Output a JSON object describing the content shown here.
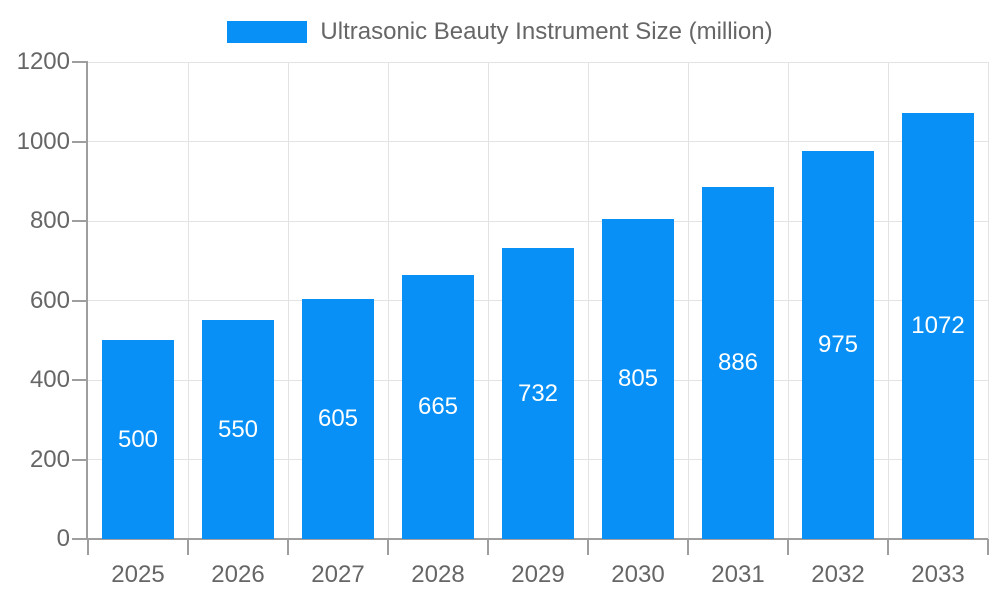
{
  "chart_data": {
    "type": "bar",
    "title": "Ultrasonic Beauty Instrument Size (million)",
    "legend_position": "top",
    "categories": [
      "2025",
      "2026",
      "2027",
      "2028",
      "2029",
      "2030",
      "2031",
      "2032",
      "2033"
    ],
    "series": [
      {
        "name": "Ultrasonic Beauty Instrument Size (million)",
        "values": [
          500,
          550,
          605,
          665,
          732,
          805,
          886,
          975,
          1072
        ]
      }
    ],
    "xlabel": "",
    "ylabel": "",
    "ylim": [
      0,
      1200
    ],
    "y_ticks": [
      0,
      200,
      400,
      600,
      800,
      1000,
      1200
    ],
    "grid": true,
    "bar_labels_inside": true,
    "colors": {
      "bar": "#0890f6",
      "bar_label": "#ffffff",
      "axis_text": "#666666",
      "grid_line": "#e3e3e3",
      "axis_line": "#9e9e9e",
      "background": "#ffffff"
    }
  }
}
